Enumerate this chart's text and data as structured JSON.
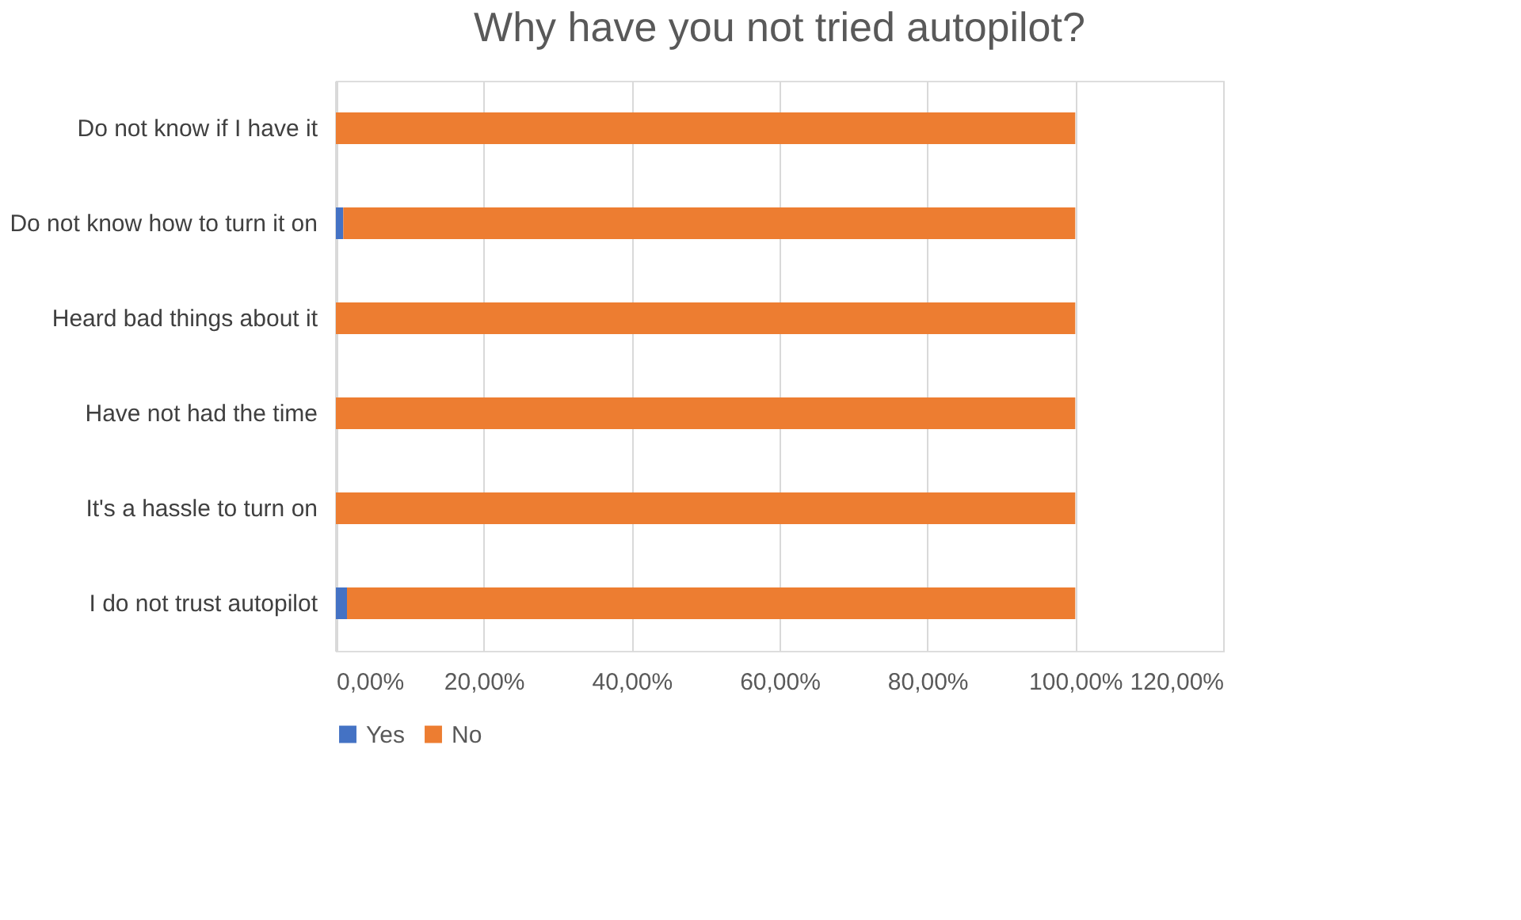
{
  "chart_data": {
    "type": "bar",
    "orientation": "horizontal",
    "stacked": true,
    "title": "Why have you not tried autopilot?",
    "categories": [
      "Do not know if I have it",
      "Do not know how to turn it on",
      "Heard bad things about it",
      "Have not had the time",
      "It's a hassle to turn on",
      "I do not trust autopilot"
    ],
    "series": [
      {
        "name": "Yes",
        "color": "#4472c4",
        "values": [
          0,
          1,
          0,
          0,
          0,
          1.5
        ]
      },
      {
        "name": "No",
        "color": "#ed7d31",
        "values": [
          100,
          99,
          100,
          100,
          100,
          98.5
        ]
      }
    ],
    "xlim": [
      0,
      120
    ],
    "xticks": [
      {
        "value": 0,
        "label": "0,00%"
      },
      {
        "value": 20,
        "label": "20,00%"
      },
      {
        "value": 40,
        "label": "40,00%"
      },
      {
        "value": 60,
        "label": "60,00%"
      },
      {
        "value": 80,
        "label": "80,00%"
      },
      {
        "value": 100,
        "label": "100,00%"
      },
      {
        "value": 120,
        "label": "120,00%"
      }
    ],
    "grid": "x",
    "legend": "bottom"
  }
}
